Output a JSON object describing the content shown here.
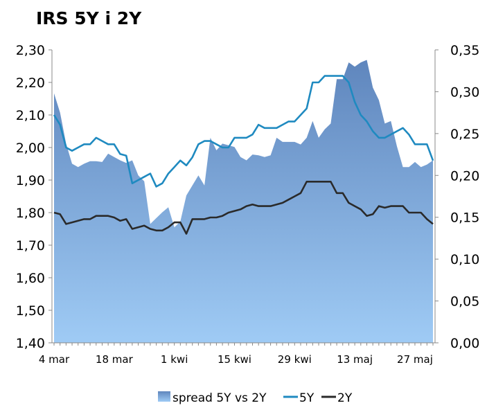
{
  "chart_data": {
    "type": "area",
    "title": "IRS 5Y i 2Y",
    "x_ticks": [
      "4 mar",
      "18 mar",
      "1 kwi",
      "15 kwi",
      "29 kwi",
      "13 maj",
      "27 maj"
    ],
    "y_left": {
      "ylim": [
        1.4,
        2.3
      ],
      "ticks": [
        "1,40",
        "1,50",
        "1,60",
        "1,70",
        "1,80",
        "1,90",
        "2,00",
        "2,10",
        "2,20",
        "2,30"
      ]
    },
    "y_right": {
      "ylim": [
        0.0,
        0.35
      ],
      "ticks": [
        "0,00",
        "0,05",
        "0,10",
        "0,15",
        "0,20",
        "0,25",
        "0,30",
        "0,35"
      ]
    },
    "x_count": 64,
    "series": [
      {
        "name": "spread 5Y vs 2Y",
        "type": "area",
        "axis": "right",
        "color": "#6f9fd8",
        "values": [
          0.298,
          0.275,
          0.238,
          0.214,
          0.21,
          0.214,
          0.217,
          0.217,
          0.216,
          0.226,
          0.222,
          0.218,
          0.215,
          0.218,
          0.2,
          0.193,
          0.142,
          0.149,
          0.156,
          0.162,
          0.138,
          0.145,
          0.176,
          0.188,
          0.2,
          0.188,
          0.245,
          0.23,
          0.238,
          0.236,
          0.234,
          0.222,
          0.218,
          0.225,
          0.224,
          0.222,
          0.224,
          0.245,
          0.24,
          0.24,
          0.24,
          0.237,
          0.245,
          0.265,
          0.245,
          0.255,
          0.262,
          0.315,
          0.315,
          0.335,
          0.33,
          0.335,
          0.338,
          0.305,
          0.29,
          0.262,
          0.265,
          0.235,
          0.21,
          0.21,
          0.216,
          0.21,
          0.213,
          0.218
        ]
      },
      {
        "name": "5Y",
        "type": "line",
        "axis": "left",
        "color": "#1f8ac0",
        "values": [
          2.1,
          2.07,
          2.0,
          1.99,
          2.0,
          2.01,
          2.01,
          2.03,
          2.02,
          2.01,
          2.01,
          1.98,
          1.975,
          1.89,
          1.9,
          1.91,
          1.92,
          1.88,
          1.89,
          1.92,
          1.94,
          1.96,
          1.945,
          1.97,
          2.01,
          2.02,
          2.02,
          2.01,
          2.0,
          2.0,
          2.03,
          2.03,
          2.03,
          2.04,
          2.07,
          2.06,
          2.06,
          2.06,
          2.07,
          2.08,
          2.08,
          2.1,
          2.12,
          2.2,
          2.2,
          2.22,
          2.22,
          2.22,
          2.22,
          2.2,
          2.14,
          2.1,
          2.08,
          2.05,
          2.03,
          2.03,
          2.04,
          2.05,
          2.06,
          2.04,
          2.01,
          2.01,
          2.01,
          1.96
        ]
      },
      {
        "name": "2Y",
        "type": "line",
        "axis": "left",
        "color": "#2a2a2a",
        "values": [
          1.8,
          1.795,
          1.765,
          1.77,
          1.775,
          1.78,
          1.78,
          1.79,
          1.79,
          1.79,
          1.785,
          1.775,
          1.78,
          1.75,
          1.755,
          1.76,
          1.75,
          1.745,
          1.745,
          1.755,
          1.77,
          1.77,
          1.735,
          1.78,
          1.78,
          1.78,
          1.785,
          1.785,
          1.79,
          1.8,
          1.805,
          1.81,
          1.82,
          1.825,
          1.82,
          1.82,
          1.82,
          1.825,
          1.83,
          1.84,
          1.85,
          1.86,
          1.895,
          1.895,
          1.895,
          1.895,
          1.895,
          1.86,
          1.86,
          1.83,
          1.82,
          1.81,
          1.79,
          1.795,
          1.82,
          1.815,
          1.82,
          1.82,
          1.82,
          1.8,
          1.8,
          1.8,
          1.78,
          1.765
        ]
      }
    ],
    "legend": {
      "position": "bottom",
      "items": [
        "spread 5Y vs 2Y",
        "5Y",
        "2Y"
      ]
    },
    "grid": false
  }
}
